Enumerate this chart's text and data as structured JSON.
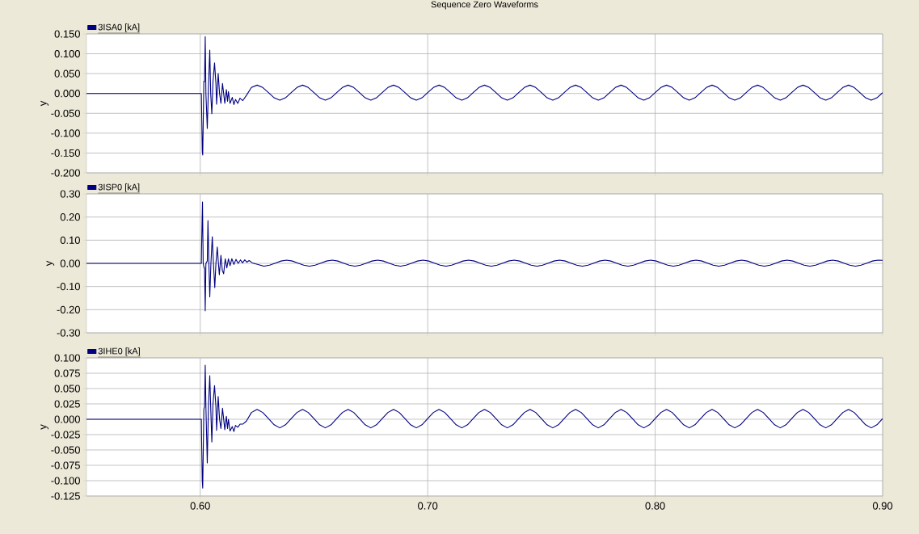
{
  "chart_data": [
    {
      "type": "line",
      "title": "Sequence Zero Waveforms",
      "ylabel": "y",
      "xlim": [
        0.55,
        0.9
      ],
      "ylim": [
        -0.2,
        0.15
      ],
      "xticks": [
        {
          "value": 0.6,
          "label": null
        },
        {
          "value": 0.7,
          "label": null
        },
        {
          "value": 0.8,
          "label": null
        },
        {
          "value": 0.9,
          "label": null
        }
      ],
      "yticks": [
        {
          "value": -0.2,
          "label": "-0.200"
        },
        {
          "value": -0.15,
          "label": "-0.150"
        },
        {
          "value": -0.1,
          "label": "-0.100"
        },
        {
          "value": -0.05,
          "label": "-0.050"
        },
        {
          "value": 0,
          "label": "0.000"
        },
        {
          "value": 0.05,
          "label": "0.050"
        },
        {
          "value": 0.1,
          "label": "0.100"
        },
        {
          "value": 0.15,
          "label": "0.150"
        }
      ],
      "tick_labels": "y",
      "grid": true,
      "legend": "top left",
      "series": [
        {
          "name": "3ISA0 [kA]",
          "color": "#000080",
          "x": [
            0.55,
            0.6005,
            0.6006,
            0.6009,
            0.6011,
            0.6016,
            0.6019,
            0.6022,
            0.6025,
            0.6031,
            0.6036,
            0.6042,
            0.6046,
            0.6051,
            0.6056,
            0.6063,
            0.6069,
            0.6072,
            0.6079,
            0.6085,
            0.6091,
            0.6098,
            0.6108,
            0.6115,
            0.612,
            0.6124,
            0.6131,
            0.6141,
            0.6148,
            0.6155,
            0.6165,
            0.6175,
            0.6187,
            0.6203,
            0.6225,
            0.625,
            0.6275,
            0.63,
            0.6325,
            0.635,
            0.6375,
            0.64,
            0.6425,
            0.645,
            0.6475,
            0.65,
            0.6525,
            0.655,
            0.6575,
            0.66,
            0.6625,
            0.665,
            0.6675,
            0.67,
            0.6725,
            0.675,
            0.6775,
            0.68,
            0.6825,
            0.685,
            0.6875,
            0.69,
            0.6925,
            0.695,
            0.6975,
            0.7,
            0.7025,
            0.705,
            0.7075,
            0.71,
            0.7125,
            0.715,
            0.7175,
            0.72,
            0.7225,
            0.725,
            0.7275,
            0.73,
            0.7325,
            0.735,
            0.7375,
            0.74,
            0.7425,
            0.745,
            0.7475,
            0.75,
            0.7525,
            0.755,
            0.7575,
            0.76,
            0.7625,
            0.765,
            0.7675,
            0.77,
            0.7725,
            0.775,
            0.7775,
            0.78,
            0.7825,
            0.785,
            0.7875,
            0.79,
            0.7925,
            0.795,
            0.7975,
            0.8,
            0.8025,
            0.805,
            0.8075,
            0.81,
            0.8125,
            0.815,
            0.8175,
            0.82,
            0.8225,
            0.825,
            0.8275,
            0.83,
            0.8325,
            0.835,
            0.8375,
            0.84,
            0.8425,
            0.845,
            0.8475,
            0.85,
            0.8525,
            0.855,
            0.8575,
            0.86,
            0.8625,
            0.865,
            0.8675,
            0.87,
            0.8725,
            0.875,
            0.8775,
            0.88,
            0.8825,
            0.885,
            0.8875,
            0.89,
            0.8925,
            0.895,
            0.8975,
            0.9
          ],
          "values": [
            0,
            0,
            -0.035,
            -0.145,
            -0.155,
            0.031,
            0.03,
            0.143,
            0.0,
            -0.088,
            0.014,
            0.109,
            0.0,
            -0.051,
            0.03,
            0.077,
            0.025,
            -0.027,
            0.05,
            0.0,
            -0.025,
            0.025,
            -0.025,
            0.01,
            -0.02,
            0.005,
            -0.025,
            -0.01,
            -0.028,
            -0.015,
            -0.025,
            -0.012,
            -0.018,
            -0.005,
            0.015,
            0.021,
            0.015,
            0.002,
            -0.011,
            -0.017,
            -0.011,
            0.002,
            0.015,
            0.021,
            0.015,
            0.002,
            -0.011,
            -0.017,
            -0.011,
            0.002,
            0.015,
            0.021,
            0.015,
            0.002,
            -0.011,
            -0.017,
            -0.011,
            0.002,
            0.015,
            0.021,
            0.015,
            0.002,
            -0.011,
            -0.017,
            -0.011,
            0.002,
            0.015,
            0.021,
            0.015,
            0.002,
            -0.011,
            -0.017,
            -0.011,
            0.002,
            0.015,
            0.021,
            0.015,
            0.002,
            -0.011,
            -0.017,
            -0.011,
            0.002,
            0.015,
            0.021,
            0.015,
            0.002,
            -0.011,
            -0.017,
            -0.011,
            0.002,
            0.015,
            0.021,
            0.015,
            0.002,
            -0.011,
            -0.017,
            -0.011,
            0.002,
            0.015,
            0.021,
            0.015,
            0.002,
            -0.011,
            -0.017,
            -0.011,
            0.002,
            0.015,
            0.021,
            0.015,
            0.002,
            -0.011,
            -0.017,
            -0.011,
            0.002,
            0.015,
            0.021,
            0.015,
            0.002,
            -0.011,
            -0.017,
            -0.011,
            0.002,
            0.015,
            0.021,
            0.015,
            0.002,
            -0.011,
            -0.017,
            -0.011,
            0.002,
            0.015,
            0.021,
            0.015,
            0.002,
            -0.011,
            -0.017,
            -0.011,
            0.002,
            0.015,
            0.021,
            0.015,
            0.002,
            -0.011,
            -0.017,
            -0.011,
            0.002
          ]
        }
      ]
    },
    {
      "type": "line",
      "ylabel": "y",
      "xlim": [
        0.55,
        0.9
      ],
      "ylim": [
        -0.3,
        0.3
      ],
      "xticks": [
        {
          "value": 0.6,
          "label": null
        },
        {
          "value": 0.7,
          "label": null
        },
        {
          "value": 0.8,
          "label": null
        },
        {
          "value": 0.9,
          "label": null
        }
      ],
      "yticks": [
        {
          "value": -0.3,
          "label": "-0.30"
        },
        {
          "value": -0.2,
          "label": "-0.20"
        },
        {
          "value": -0.1,
          "label": "-0.10"
        },
        {
          "value": 0,
          "label": "0.00"
        },
        {
          "value": 0.1,
          "label": "0.10"
        },
        {
          "value": 0.2,
          "label": "0.20"
        },
        {
          "value": 0.3,
          "label": "0.30"
        }
      ],
      "tick_labels": "y",
      "grid": true,
      "legend": "top left",
      "series": [
        {
          "name": "3ISP0 [kA]",
          "color": "#000080",
          "x": [
            0.55,
            0.6005,
            0.6006,
            0.601,
            0.6013,
            0.6017,
            0.6019,
            0.6022,
            0.6025,
            0.6031,
            0.6034,
            0.6038,
            0.6042,
            0.6047,
            0.6053,
            0.6058,
            0.6064,
            0.6069,
            0.6075,
            0.608,
            0.6084,
            0.6091,
            0.6097,
            0.6103,
            0.611,
            0.6117,
            0.6124,
            0.6131,
            0.6139,
            0.6148,
            0.6157,
            0.6167,
            0.6177,
            0.6186,
            0.6196,
            0.6205,
            0.6215,
            0.6229,
            0.628,
            0.6305,
            0.633,
            0.6355,
            0.638,
            0.6405,
            0.643,
            0.6455,
            0.648,
            0.6505,
            0.653,
            0.6555,
            0.658,
            0.6605,
            0.663,
            0.6655,
            0.668,
            0.6705,
            0.673,
            0.6755,
            0.678,
            0.6805,
            0.683,
            0.6855,
            0.688,
            0.6905,
            0.693,
            0.6955,
            0.698,
            0.7005,
            0.703,
            0.7055,
            0.708,
            0.7105,
            0.713,
            0.7155,
            0.718,
            0.7205,
            0.723,
            0.7255,
            0.728,
            0.7305,
            0.733,
            0.7355,
            0.738,
            0.7405,
            0.743,
            0.7455,
            0.748,
            0.7505,
            0.753,
            0.7555,
            0.758,
            0.7605,
            0.763,
            0.7655,
            0.768,
            0.7705,
            0.773,
            0.7755,
            0.778,
            0.7805,
            0.783,
            0.7855,
            0.788,
            0.7905,
            0.793,
            0.7955,
            0.798,
            0.8005,
            0.803,
            0.8055,
            0.808,
            0.8105,
            0.813,
            0.8155,
            0.818,
            0.8205,
            0.823,
            0.8255,
            0.828,
            0.8305,
            0.833,
            0.8355,
            0.838,
            0.8405,
            0.843,
            0.8455,
            0.848,
            0.8505,
            0.853,
            0.8555,
            0.858,
            0.8605,
            0.863,
            0.8655,
            0.868,
            0.8705,
            0.873,
            0.8755,
            0.878,
            0.8805,
            0.883,
            0.8855,
            0.888,
            0.8905,
            0.893,
            0.8955,
            0.898,
            0.9
          ],
          "values": [
            0,
            0,
            0.07,
            0.265,
            0.0,
            -0.02,
            -0.02,
            -0.205,
            0.0,
            0.01,
            0.185,
            0.0,
            -0.145,
            0.0,
            0.115,
            0.0,
            -0.105,
            0.0,
            0.07,
            0.0,
            -0.05,
            0.035,
            -0.03,
            -0.045,
            0.02,
            -0.02,
            0.02,
            -0.01,
            0.02,
            -0.005,
            0.017,
            0.0,
            0.015,
            0.002,
            0.015,
            0.005,
            0.012,
            0.002,
            -0.012,
            -0.008,
            0.001,
            0.01,
            0.014,
            0.01,
            0.001,
            -0.008,
            -0.012,
            -0.008,
            0.001,
            0.01,
            0.014,
            0.01,
            0.001,
            -0.008,
            -0.012,
            -0.008,
            0.001,
            0.01,
            0.014,
            0.01,
            0.001,
            -0.008,
            -0.012,
            -0.008,
            0.001,
            0.01,
            0.014,
            0.01,
            0.001,
            -0.008,
            -0.012,
            -0.008,
            0.001,
            0.01,
            0.014,
            0.01,
            0.001,
            -0.008,
            -0.012,
            -0.008,
            0.001,
            0.01,
            0.014,
            0.01,
            0.001,
            -0.008,
            -0.012,
            -0.008,
            0.001,
            0.01,
            0.014,
            0.01,
            0.001,
            -0.008,
            -0.012,
            -0.008,
            0.001,
            0.01,
            0.014,
            0.01,
            0.001,
            -0.008,
            -0.012,
            -0.008,
            0.001,
            0.01,
            0.014,
            0.01,
            0.001,
            -0.008,
            -0.012,
            -0.008,
            0.001,
            0.01,
            0.014,
            0.01,
            0.001,
            -0.008,
            -0.012,
            -0.008,
            0.001,
            0.01,
            0.014,
            0.01,
            0.001,
            -0.008,
            -0.012,
            -0.008,
            0.001,
            0.01,
            0.014,
            0.01,
            0.001,
            -0.008,
            -0.012,
            -0.008,
            0.001,
            0.01,
            0.014,
            0.01,
            0.001,
            -0.008,
            -0.012,
            -0.008,
            0.001,
            0.01,
            0.014,
            0.013
          ]
        }
      ]
    },
    {
      "type": "line",
      "ylabel": "y",
      "xlim": [
        0.55,
        0.9
      ],
      "ylim": [
        -0.125,
        0.1
      ],
      "xticks": [
        {
          "value": 0.6,
          "label": "0.60"
        },
        {
          "value": 0.7,
          "label": "0.70"
        },
        {
          "value": 0.8,
          "label": "0.80"
        },
        {
          "value": 0.9,
          "label": "0.90"
        }
      ],
      "yticks": [
        {
          "value": -0.125,
          "label": "-0.125"
        },
        {
          "value": -0.1,
          "label": "-0.100"
        },
        {
          "value": -0.075,
          "label": "-0.075"
        },
        {
          "value": -0.05,
          "label": "-0.050"
        },
        {
          "value": -0.025,
          "label": "-0.025"
        },
        {
          "value": 0,
          "label": "0.000"
        },
        {
          "value": 0.025,
          "label": "0.025"
        },
        {
          "value": 0.05,
          "label": "0.050"
        },
        {
          "value": 0.075,
          "label": "0.075"
        },
        {
          "value": 0.1,
          "label": "0.100"
        }
      ],
      "grid": true,
      "legend": "top left",
      "series": [
        {
          "name": "3IHE0 [kA]",
          "color": "#000080",
          "x": [
            0.55,
            0.6005,
            0.6006,
            0.6009,
            0.6011,
            0.6016,
            0.6019,
            0.6022,
            0.6025,
            0.6031,
            0.6036,
            0.6042,
            0.6046,
            0.6051,
            0.6056,
            0.6063,
            0.6069,
            0.6072,
            0.6079,
            0.6085,
            0.6091,
            0.6098,
            0.6108,
            0.6115,
            0.612,
            0.6124,
            0.6131,
            0.6141,
            0.6148,
            0.6155,
            0.6165,
            0.6175,
            0.6187,
            0.6203,
            0.6225,
            0.625,
            0.6275,
            0.63,
            0.6325,
            0.635,
            0.6375,
            0.64,
            0.6425,
            0.645,
            0.6475,
            0.65,
            0.6525,
            0.655,
            0.6575,
            0.66,
            0.6625,
            0.665,
            0.6675,
            0.67,
            0.6725,
            0.675,
            0.6775,
            0.68,
            0.6825,
            0.685,
            0.6875,
            0.69,
            0.6925,
            0.695,
            0.6975,
            0.7,
            0.7025,
            0.705,
            0.7075,
            0.71,
            0.7125,
            0.715,
            0.7175,
            0.72,
            0.7225,
            0.725,
            0.7275,
            0.73,
            0.7325,
            0.735,
            0.7375,
            0.74,
            0.7425,
            0.745,
            0.7475,
            0.75,
            0.7525,
            0.755,
            0.7575,
            0.76,
            0.7625,
            0.765,
            0.7675,
            0.77,
            0.7725,
            0.775,
            0.7775,
            0.78,
            0.7825,
            0.785,
            0.7875,
            0.79,
            0.7925,
            0.795,
            0.7975,
            0.8,
            0.8025,
            0.805,
            0.8075,
            0.81,
            0.8125,
            0.815,
            0.8175,
            0.82,
            0.8225,
            0.825,
            0.8275,
            0.83,
            0.8325,
            0.835,
            0.8375,
            0.84,
            0.8425,
            0.845,
            0.8475,
            0.85,
            0.8525,
            0.855,
            0.8575,
            0.86,
            0.8625,
            0.865,
            0.8675,
            0.87,
            0.8725,
            0.875,
            0.8775,
            0.88,
            0.8825,
            0.885,
            0.8875,
            0.89,
            0.8925,
            0.895,
            0.8975,
            0.9
          ],
          "values": [
            0,
            0,
            -0.03,
            -0.1,
            -0.112,
            0.017,
            0.02,
            0.088,
            0.02,
            -0.071,
            0.02,
            0.071,
            0.02,
            -0.037,
            0.025,
            0.055,
            0.02,
            -0.018,
            0.037,
            0.0,
            -0.015,
            0.018,
            -0.017,
            0.005,
            -0.015,
            0.0,
            -0.019,
            -0.012,
            -0.02,
            -0.01,
            -0.013,
            -0.008,
            -0.008,
            -0.003,
            0.011,
            0.016,
            0.011,
            0.001,
            -0.009,
            -0.014,
            -0.009,
            0.001,
            0.011,
            0.016,
            0.011,
            0.001,
            -0.009,
            -0.014,
            -0.009,
            0.001,
            0.011,
            0.016,
            0.011,
            0.001,
            -0.009,
            -0.014,
            -0.009,
            0.001,
            0.011,
            0.016,
            0.011,
            0.001,
            -0.009,
            -0.014,
            -0.009,
            0.001,
            0.011,
            0.016,
            0.011,
            0.001,
            -0.009,
            -0.014,
            -0.009,
            0.001,
            0.011,
            0.016,
            0.011,
            0.001,
            -0.009,
            -0.014,
            -0.009,
            0.001,
            0.011,
            0.016,
            0.011,
            0.001,
            -0.009,
            -0.014,
            -0.009,
            0.001,
            0.011,
            0.016,
            0.011,
            0.001,
            -0.009,
            -0.014,
            -0.009,
            0.001,
            0.011,
            0.016,
            0.011,
            0.001,
            -0.009,
            -0.014,
            -0.009,
            0.001,
            0.011,
            0.016,
            0.011,
            0.001,
            -0.009,
            -0.014,
            -0.009,
            0.001,
            0.011,
            0.016,
            0.011,
            0.001,
            -0.009,
            -0.014,
            -0.009,
            0.001,
            0.011,
            0.016,
            0.011,
            0.001,
            -0.009,
            -0.014,
            -0.009,
            0.001,
            0.011,
            0.016,
            0.011,
            0.001,
            -0.009,
            -0.014,
            -0.009,
            0.001,
            0.011,
            0.016,
            0.011,
            0.001,
            -0.009,
            -0.014,
            -0.009,
            0.001
          ]
        }
      ]
    }
  ]
}
